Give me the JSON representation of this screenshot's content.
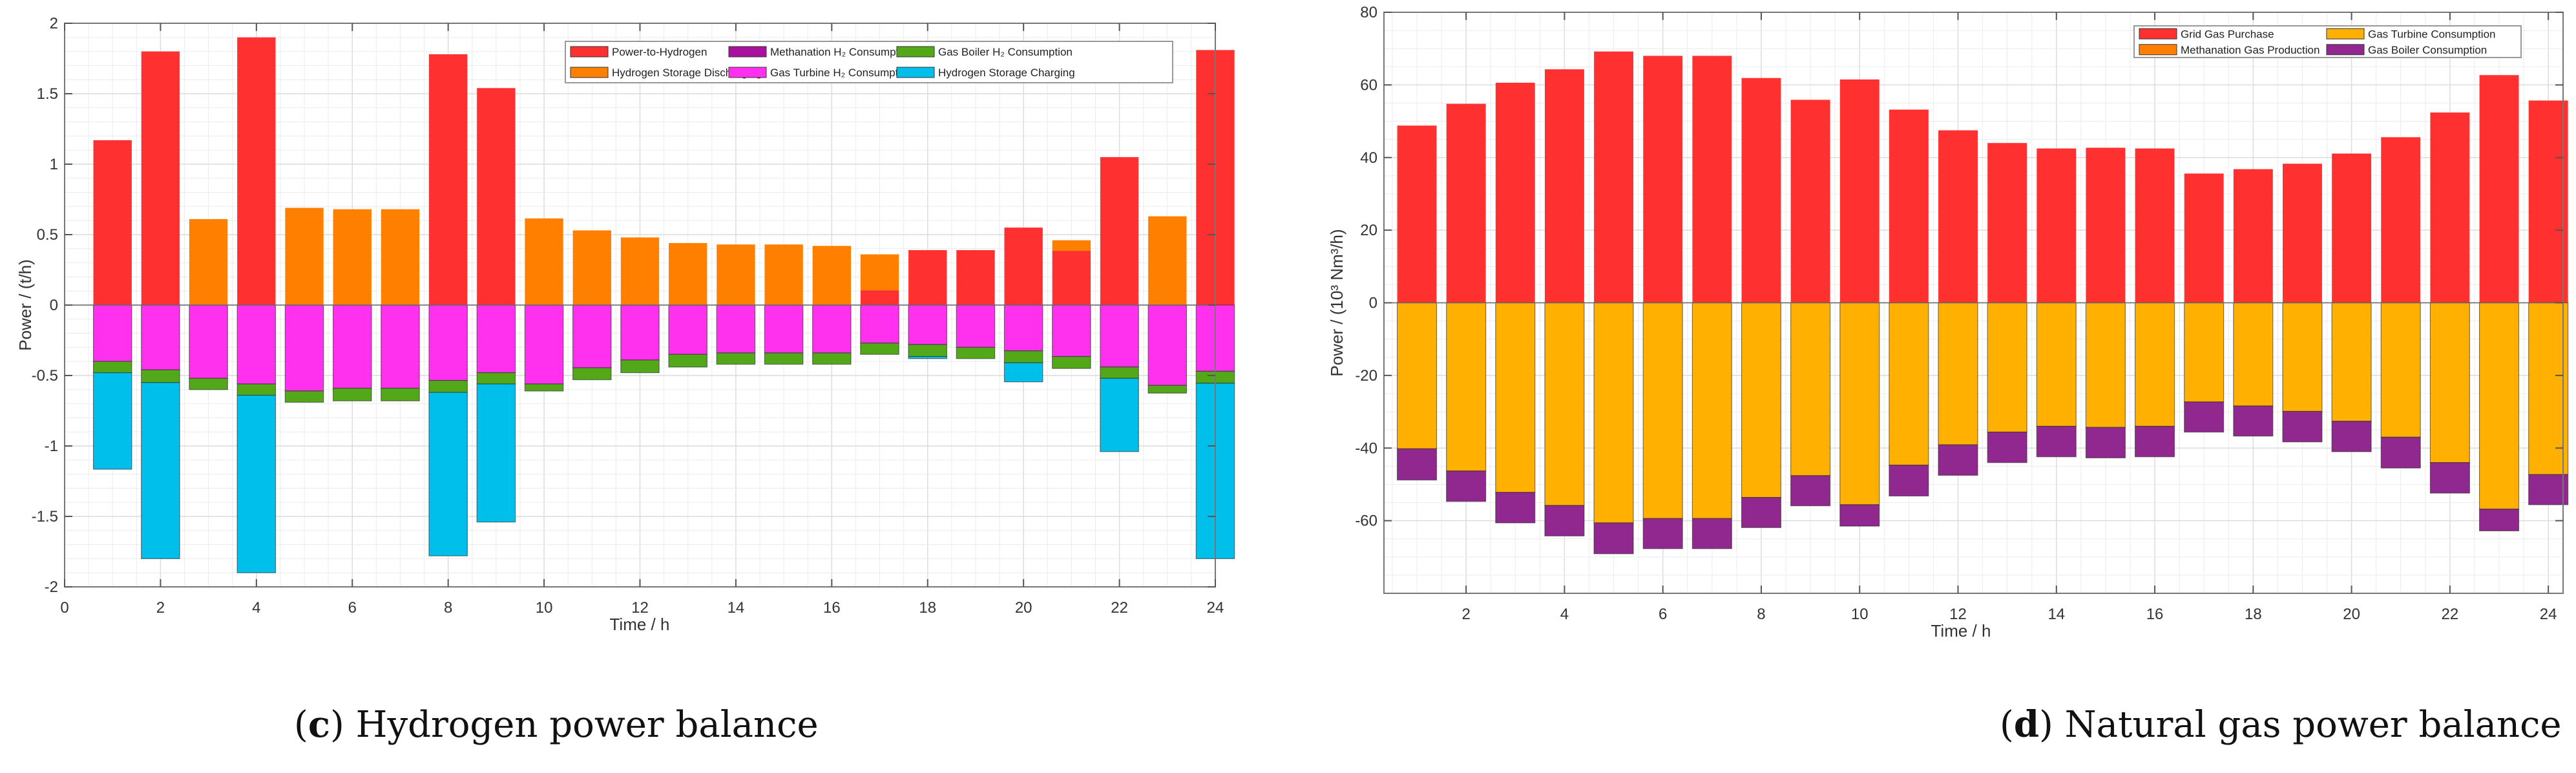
{
  "captions": {
    "c": {
      "open": "(",
      "letter": "c",
      "text": ") Hydrogen power balance"
    },
    "d": {
      "open": "(",
      "letter": "d",
      "text": ") Natural gas power balance"
    }
  },
  "chart_data": [
    {
      "type": "bar",
      "stacked": true,
      "title": "Hydrogen power balance",
      "xlabel": "Time / h",
      "ylabel": "Power / (t/h)",
      "xlim": [
        0,
        24
      ],
      "ylim": [
        -2,
        2
      ],
      "xticks": [
        "0",
        "2",
        "4",
        "6",
        "8",
        "10",
        "12",
        "14",
        "16",
        "18",
        "20",
        "22",
        "24"
      ],
      "yticks": [
        "2",
        "1.5",
        "1",
        "0.5",
        "0",
        "-0.5",
        "-1",
        "-1.5",
        "-2"
      ],
      "grid": true,
      "legend_position": "top-right",
      "x": [
        1,
        2,
        3,
        4,
        5,
        6,
        7,
        8,
        9,
        10,
        11,
        12,
        13,
        14,
        15,
        16,
        17,
        18,
        19,
        20,
        21,
        22,
        23,
        24
      ],
      "series": [
        {
          "name": "Power-to-Hydrogen",
          "color": "#ff3030",
          "values": [
            1.17,
            1.8,
            0,
            1.9,
            0,
            0,
            0,
            1.78,
            1.54,
            0,
            0,
            0,
            0,
            0,
            0,
            0,
            0.105,
            0.39,
            0.39,
            0.55,
            0.385,
            1.05,
            0,
            1.81
          ]
        },
        {
          "name": "Hydrogen Storage Discharging",
          "color": "#ff8000",
          "values": [
            0,
            0,
            0.61,
            0,
            0.69,
            0.68,
            0.68,
            0,
            0,
            0.615,
            0.53,
            0.48,
            0.44,
            0.43,
            0.43,
            0.42,
            0.255,
            0,
            0,
            0,
            0.075,
            0,
            0.63,
            0
          ]
        },
        {
          "name": "Methanation H₂ Consumption",
          "color": "#a8109e",
          "values": [
            0,
            0,
            0,
            0,
            0,
            0,
            0,
            0,
            0,
            0,
            0,
            0,
            0,
            0,
            0,
            0,
            0,
            0,
            0,
            0,
            0,
            0,
            0,
            0
          ]
        },
        {
          "name": "Gas Turbine H₂ Consumption",
          "color": "#ff30ee",
          "values": [
            -0.4,
            -0.46,
            -0.52,
            -0.56,
            -0.61,
            -0.59,
            -0.59,
            -0.535,
            -0.48,
            -0.56,
            -0.445,
            -0.39,
            -0.35,
            -0.34,
            -0.34,
            -0.34,
            -0.27,
            -0.28,
            -0.3,
            -0.325,
            -0.365,
            -0.44,
            -0.57,
            -0.47
          ]
        },
        {
          "name": "Gas Boiler H₂ Consumption",
          "color": "#52a818",
          "values": [
            -0.08,
            -0.09,
            -0.08,
            -0.08,
            -0.08,
            -0.09,
            -0.09,
            -0.085,
            -0.08,
            -0.05,
            -0.085,
            -0.09,
            -0.09,
            -0.08,
            -0.08,
            -0.08,
            -0.08,
            -0.085,
            -0.08,
            -0.085,
            -0.085,
            -0.08,
            -0.055,
            -0.085
          ]
        },
        {
          "name": "Hydrogen Storage Charging",
          "color": "#00bfea",
          "values": [
            -0.685,
            -1.25,
            0,
            -1.26,
            0,
            0,
            0,
            -1.16,
            -0.98,
            0,
            0,
            0,
            0,
            0,
            0,
            0,
            0,
            -0.015,
            0,
            -0.135,
            0,
            -0.52,
            0,
            -1.245
          ]
        }
      ],
      "legend_order": [
        0,
        1,
        2,
        3,
        4,
        5
      ]
    },
    {
      "type": "bar",
      "stacked": true,
      "title": "Natural gas power balance",
      "xlabel": "Time / h",
      "ylabel": "Power / (10³ Nm³/h)",
      "xlim": [
        0.33,
        24.3
      ],
      "ylim": [
        -80,
        80
      ],
      "xticks": [
        "2",
        "4",
        "6",
        "8",
        "10",
        "12",
        "14",
        "16",
        "18",
        "20",
        "22",
        "24"
      ],
      "yticks": [
        "80",
        "60",
        "40",
        "20",
        "0",
        "-20",
        "-40",
        "-60"
      ],
      "grid": true,
      "legend_position": "top-right",
      "x": [
        1,
        2,
        3,
        4,
        5,
        6,
        7,
        8,
        9,
        10,
        11,
        12,
        13,
        14,
        15,
        16,
        17,
        18,
        19,
        20,
        21,
        22,
        23,
        24
      ],
      "series": [
        {
          "name": "Grid Gas Purchase",
          "color": "#ff3030",
          "values": [
            48.8,
            54.8,
            60.6,
            64.3,
            69.2,
            68.0,
            68.0,
            61.9,
            55.9,
            61.5,
            53.2,
            47.5,
            44.0,
            42.5,
            42.7,
            42.5,
            35.6,
            36.8,
            38.3,
            41.1,
            45.6,
            52.4,
            62.7,
            55.7
          ]
        },
        {
          "name": "Methanation Gas Production",
          "color": "#ff8000",
          "values": [
            0,
            0,
            0,
            0,
            0,
            0,
            0,
            0,
            0,
            0,
            0,
            0,
            0,
            0,
            0,
            0,
            0,
            0,
            0,
            0,
            0,
            0,
            0,
            0
          ]
        },
        {
          "name": "Gas Turbine Consumption",
          "color": "#ffb000",
          "values": [
            -40.2,
            -46.3,
            -52.2,
            -55.8,
            -60.6,
            -59.4,
            -59.4,
            -53.6,
            -47.6,
            -55.6,
            -44.7,
            -39.1,
            -35.6,
            -34.0,
            -34.3,
            -34.0,
            -27.3,
            -28.4,
            -29.9,
            -32.6,
            -37.0,
            -44.0,
            -56.8,
            -47.3
          ]
        },
        {
          "name": "Gas Boiler Consumption",
          "color": "#912890",
          "values": [
            -8.6,
            -8.4,
            -8.4,
            -8.4,
            -8.5,
            -8.3,
            -8.3,
            -8.3,
            -8.3,
            -5.9,
            -8.5,
            -8.4,
            -8.4,
            -8.4,
            -8.4,
            -8.4,
            -8.3,
            -8.3,
            -8.4,
            -8.4,
            -8.5,
            -8.4,
            -6.0,
            -8.3
          ]
        }
      ],
      "legend_order": [
        0,
        1,
        2,
        3
      ]
    }
  ]
}
